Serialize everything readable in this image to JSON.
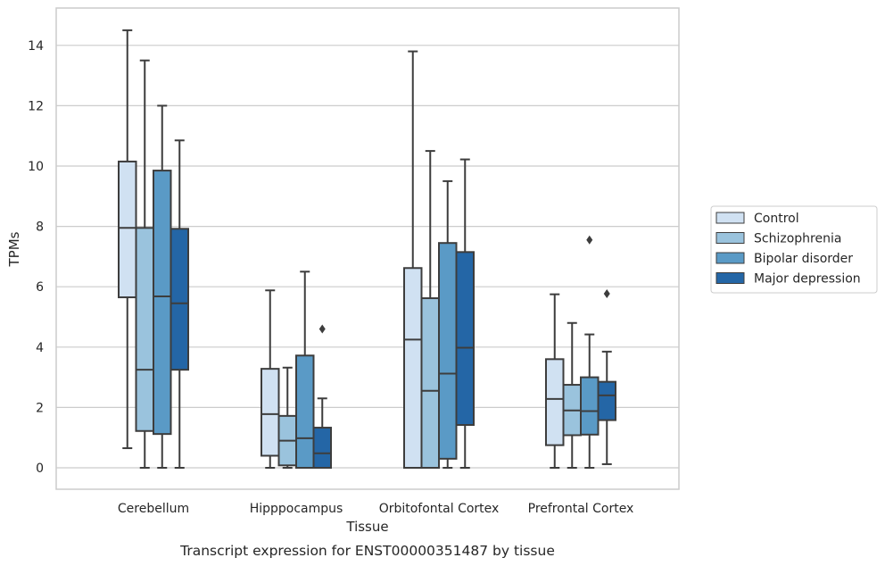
{
  "chart_data": {
    "type": "box",
    "caption": "Transcript expression for ENST00000351487 by tissue",
    "xlabel": "Tissue",
    "ylabel": "TPMs",
    "ylim": [
      -0.7,
      15.25
    ],
    "yticks": [
      0,
      2,
      4,
      6,
      8,
      10,
      12,
      14
    ],
    "grid": "horizontal",
    "legend_position": "right",
    "categories": [
      "Cerebellum",
      "Hipppocampus",
      "Orbitofontal Cortex",
      "Prefrontal Cortex"
    ],
    "series": [
      {
        "name": "Control",
        "color": "#d0e1f2",
        "boxes": [
          {
            "whisker_low": 0.65,
            "q1": 5.65,
            "median": 7.95,
            "q3": 10.15,
            "whisker_high": 14.5,
            "outliers": []
          },
          {
            "whisker_low": 0.0,
            "q1": 0.4,
            "median": 1.78,
            "q3": 3.28,
            "whisker_high": 5.88,
            "outliers": []
          },
          {
            "whisker_low": 0.0,
            "q1": 0.0,
            "median": 4.25,
            "q3": 6.62,
            "whisker_high": 13.8,
            "outliers": []
          },
          {
            "whisker_low": 0.0,
            "q1": 0.75,
            "median": 2.28,
            "q3": 3.6,
            "whisker_high": 5.75,
            "outliers": []
          }
        ]
      },
      {
        "name": "Schizophrenia",
        "color": "#9ac3dd",
        "boxes": [
          {
            "whisker_low": 0.0,
            "q1": 1.22,
            "median": 3.25,
            "q3": 7.95,
            "whisker_high": 13.5,
            "outliers": []
          },
          {
            "whisker_low": 0.0,
            "q1": 0.08,
            "median": 0.9,
            "q3": 1.72,
            "whisker_high": 3.32,
            "outliers": []
          },
          {
            "whisker_low": 0.0,
            "q1": 0.0,
            "median": 2.55,
            "q3": 5.62,
            "whisker_high": 10.5,
            "outliers": []
          },
          {
            "whisker_low": 0.0,
            "q1": 1.08,
            "median": 1.9,
            "q3": 2.75,
            "whisker_high": 4.8,
            "outliers": []
          }
        ]
      },
      {
        "name": "Bipolar disorder",
        "color": "#5a9ac6",
        "boxes": [
          {
            "whisker_low": 0.0,
            "q1": 1.12,
            "median": 5.68,
            "q3": 9.85,
            "whisker_high": 12.0,
            "outliers": []
          },
          {
            "whisker_low": 0.0,
            "q1": 0.0,
            "median": 0.98,
            "q3": 3.72,
            "whisker_high": 6.5,
            "outliers": []
          },
          {
            "whisker_low": 0.0,
            "q1": 0.3,
            "median": 3.12,
            "q3": 7.45,
            "whisker_high": 9.5,
            "outliers": []
          },
          {
            "whisker_low": 0.0,
            "q1": 1.1,
            "median": 1.88,
            "q3": 3.0,
            "whisker_high": 4.42,
            "outliers": [
              7.55
            ]
          }
        ]
      },
      {
        "name": "Major depression",
        "color": "#2466a6",
        "boxes": [
          {
            "whisker_low": 0.0,
            "q1": 3.25,
            "median": 5.45,
            "q3": 7.92,
            "whisker_high": 10.85,
            "outliers": []
          },
          {
            "whisker_low": 0.0,
            "q1": 0.0,
            "median": 0.48,
            "q3": 1.33,
            "whisker_high": 2.3,
            "outliers": [
              4.6
            ]
          },
          {
            "whisker_low": 0.0,
            "q1": 1.42,
            "median": 3.98,
            "q3": 7.15,
            "whisker_high": 10.22,
            "outliers": []
          },
          {
            "whisker_low": 0.12,
            "q1": 1.58,
            "median": 2.4,
            "q3": 2.85,
            "whisker_high": 3.85,
            "outliers": [
              5.77
            ]
          }
        ]
      }
    ]
  }
}
